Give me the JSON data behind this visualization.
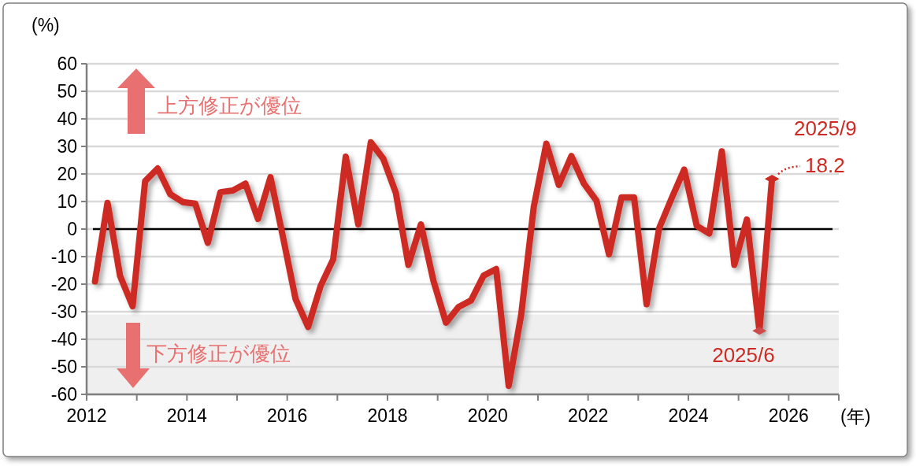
{
  "chart_data": {
    "type": "line",
    "xlabel": "(年)",
    "ylabel": "(%)",
    "x": [
      "2012-03",
      "2012-06",
      "2012-09",
      "2012-12",
      "2013-03",
      "2013-06",
      "2013-09",
      "2013-12",
      "2014-03",
      "2014-06",
      "2014-09",
      "2014-12",
      "2015-03",
      "2015-06",
      "2015-09",
      "2015-12",
      "2016-03",
      "2016-06",
      "2016-09",
      "2016-12",
      "2017-03",
      "2017-06",
      "2017-09",
      "2017-12",
      "2018-03",
      "2018-06",
      "2018-09",
      "2018-12",
      "2019-03",
      "2019-06",
      "2019-09",
      "2019-12",
      "2020-03",
      "2020-06",
      "2020-09",
      "2020-12",
      "2021-03",
      "2021-06",
      "2021-09",
      "2021-12",
      "2022-03",
      "2022-06",
      "2022-09",
      "2022-12",
      "2023-03",
      "2023-06",
      "2023-09",
      "2023-12",
      "2024-03",
      "2024-06",
      "2024-09",
      "2024-12",
      "2025-03",
      "2025-06",
      "2025-09"
    ],
    "series": [
      {
        "color": "#cc2a22",
        "values": [
          -19,
          9.5,
          -17,
          -28,
          17.4,
          22,
          12.7,
          9.8,
          9.2,
          -5,
          13.4,
          14,
          16.5,
          3.7,
          18.8,
          -3,
          -25.4,
          -35.5,
          -20.6,
          -11,
          26.3,
          1.7,
          31.5,
          25.5,
          13.1,
          -13,
          1.7,
          -18.8,
          -34,
          -28.3,
          -25.9,
          -16.9,
          -14.5,
          -56.9,
          -31,
          8,
          31,
          16,
          26.5,
          16.5,
          10.3,
          -9.2,
          11.5,
          11.5,
          -27.3,
          0.3,
          11.2,
          21.6,
          1.2,
          -1.6,
          28.2,
          -13,
          3.5,
          -36.9,
          18.2
        ]
      }
    ],
    "xlim": [
      "2012",
      "2027"
    ],
    "xticks": [
      {
        "value": "2012",
        "label": "2012"
      },
      {
        "value": "2013",
        "label": null
      },
      {
        "value": "2014",
        "label": "2014"
      },
      {
        "value": "2015",
        "label": null
      },
      {
        "value": "2016",
        "label": "2016"
      },
      {
        "value": "2017",
        "label": null
      },
      {
        "value": "2018",
        "label": "2018"
      },
      {
        "value": "2019",
        "label": null
      },
      {
        "value": "2020",
        "label": "2020"
      },
      {
        "value": "2021",
        "label": null
      },
      {
        "value": "2022",
        "label": "2022"
      },
      {
        "value": "2023",
        "label": null
      },
      {
        "value": "2024",
        "label": "2024"
      },
      {
        "value": "2025",
        "label": null
      },
      {
        "value": "2026",
        "label": "2026"
      },
      {
        "value": "2027",
        "label": null
      }
    ],
    "ylim": [
      -60,
      60
    ],
    "yticks": [
      -60,
      -50,
      -40,
      -30,
      -20,
      -10,
      0,
      10,
      20,
      30,
      40,
      50,
      60
    ],
    "grid": "y",
    "marker": "none",
    "line_style": "solid",
    "ref_lines": [
      {
        "axis": "y",
        "value": 0,
        "color": "#000000"
      }
    ],
    "bands": [
      {
        "axis": "y",
        "from": -60,
        "to": -31,
        "color": "#efefef"
      }
    ],
    "annotations": [
      "上方修正が優位",
      "下方修正が優位",
      {
        "text": "2025/9",
        "x": "2025-09",
        "y": 18.2
      },
      {
        "text": "18.2",
        "x": "2025-09",
        "y": 18.2
      },
      {
        "text": "2025/6",
        "x": "2025-06",
        "y": -36.9
      }
    ]
  }
}
